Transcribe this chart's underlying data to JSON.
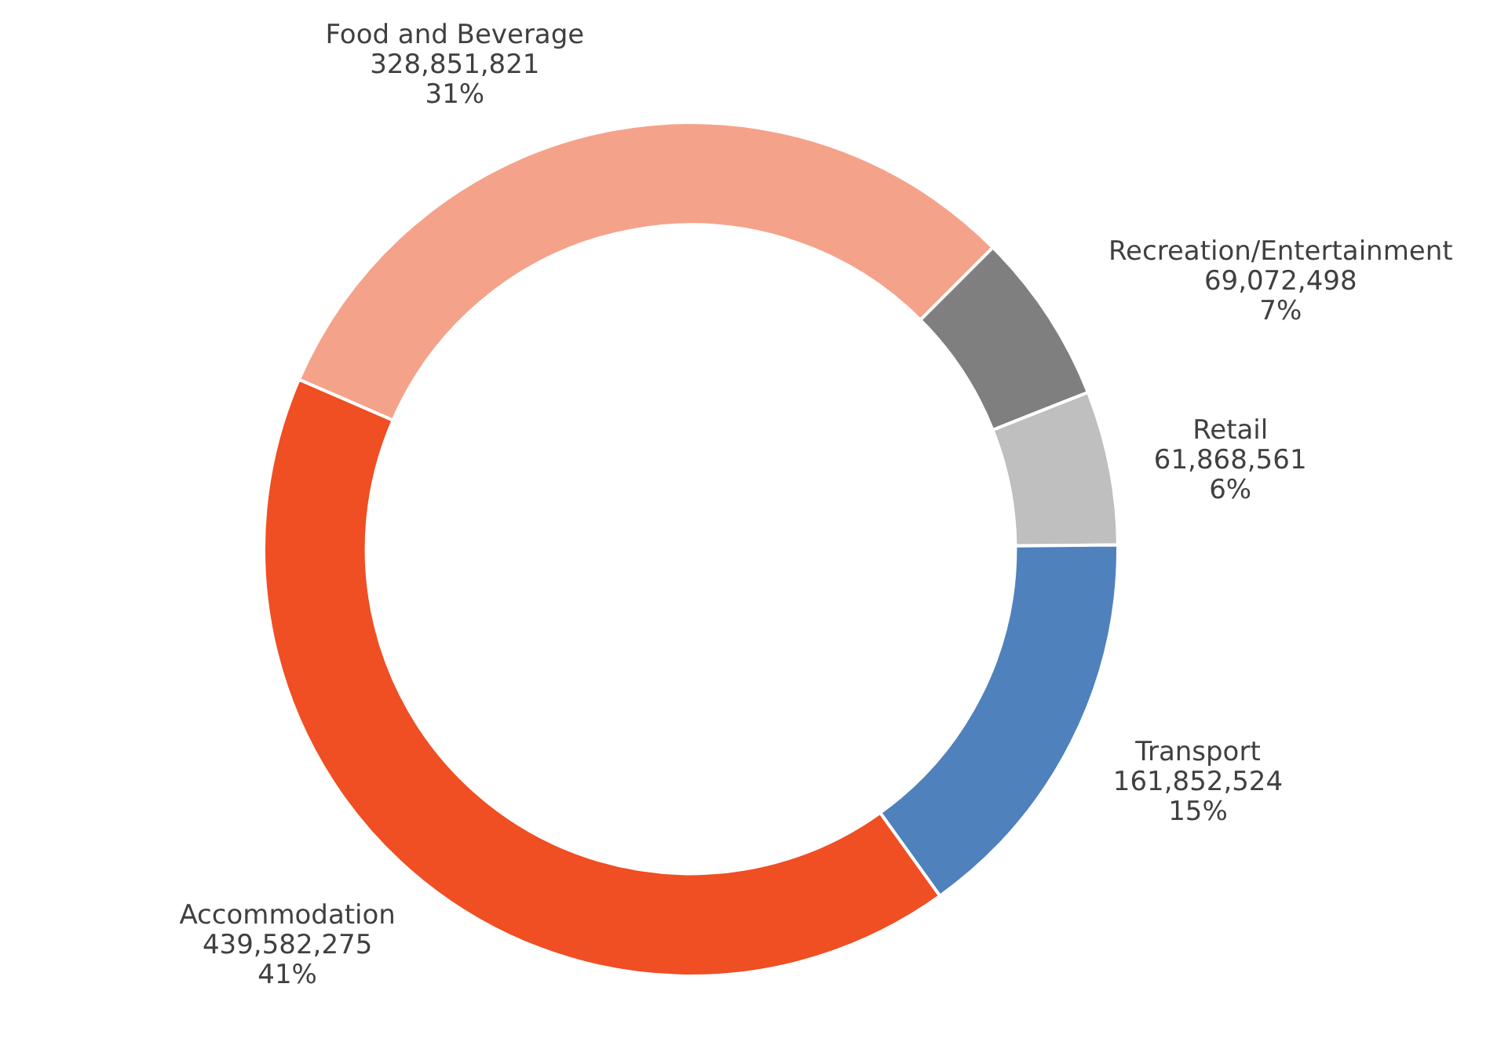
{
  "chart_data": {
    "type": "donut",
    "categories": [
      "Recreation/Entertainment",
      "Retail",
      "Transport",
      "Accommodation",
      "Food and Beverage"
    ],
    "values": [
      69072498,
      61868561,
      161852524,
      439582275,
      328851821
    ],
    "colors": [
      "#7f7f7f",
      "#bfbfbf",
      "#4f81bd",
      "#f04e23",
      "#f5a28a"
    ],
    "value_labels": [
      "69,072,498\n7%",
      "61,868,561\n6%",
      "161,852,524\n15%",
      "439,582,275\n41%",
      "328,851,821\n31%"
    ]
  }
}
